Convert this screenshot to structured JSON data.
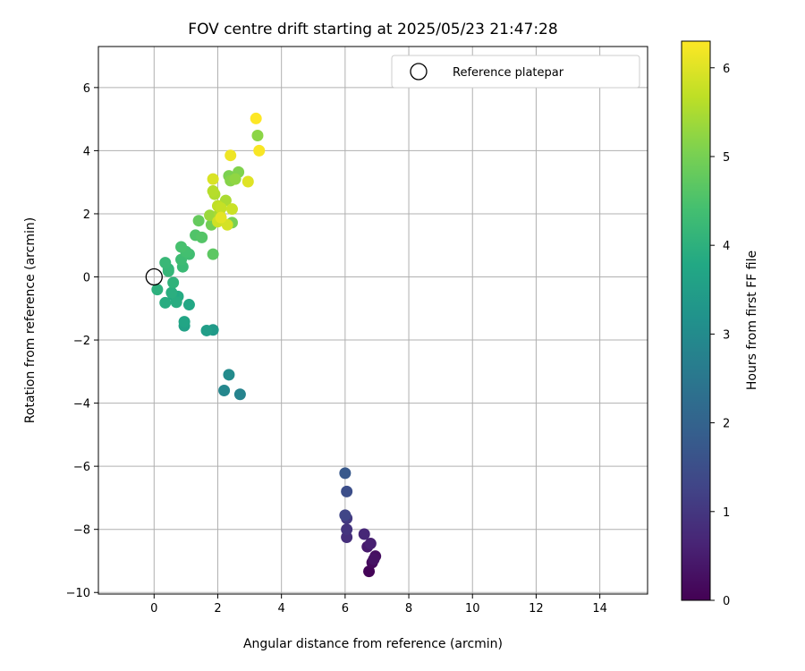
{
  "chart_data": {
    "type": "scatter",
    "title": "FOV centre drift starting at 2025/05/23 21:47:28",
    "xlabel": "Angular distance from reference (arcmin)",
    "ylabel": "Rotation from reference (arcmin)",
    "xlim": [
      -1.75,
      15.5
    ],
    "ylim": [
      -10.05,
      7.3
    ],
    "xticks": [
      0,
      2,
      4,
      6,
      8,
      10,
      12,
      14
    ],
    "yticks": [
      -10,
      -8,
      -6,
      -4,
      -2,
      0,
      2,
      4,
      6
    ],
    "xtick_labels": [
      "0",
      "2",
      "4",
      "6",
      "8",
      "10",
      "12",
      "14"
    ],
    "ytick_labels": [
      "−10",
      "−8",
      "−6",
      "−4",
      "−2",
      "0",
      "2",
      "4",
      "6"
    ],
    "grid": true,
    "legend": {
      "position": "top-right",
      "entries": [
        "Reference platepar"
      ]
    },
    "reference_point": {
      "x": 0,
      "y": 0,
      "marker": "open-circle",
      "color": "#000000"
    },
    "colorbar": {
      "label": "Hours from first FF file",
      "range": [
        0,
        6.3
      ],
      "ticks": [
        0,
        1,
        2,
        3,
        4,
        5,
        6
      ],
      "tick_labels": [
        "0",
        "1",
        "2",
        "3",
        "4",
        "5",
        "6"
      ],
      "colormap": "viridis"
    },
    "series": [
      {
        "color_by": "hours",
        "points": [
          {
            "x": 6.75,
            "y": -9.33,
            "c": 0.05
          },
          {
            "x": 6.85,
            "y": -9.05,
            "c": 0.15
          },
          {
            "x": 6.95,
            "y": -8.85,
            "c": 0.25
          },
          {
            "x": 6.9,
            "y": -8.95,
            "c": 0.3
          },
          {
            "x": 6.7,
            "y": -8.55,
            "c": 0.45
          },
          {
            "x": 6.8,
            "y": -8.45,
            "c": 0.55
          },
          {
            "x": 6.6,
            "y": -8.15,
            "c": 0.7
          },
          {
            "x": 6.05,
            "y": -8.25,
            "c": 0.85
          },
          {
            "x": 6.05,
            "y": -8.0,
            "c": 0.95
          },
          {
            "x": 6.05,
            "y": -7.65,
            "c": 1.05
          },
          {
            "x": 6.0,
            "y": -7.55,
            "c": 1.3
          },
          {
            "x": 6.05,
            "y": -6.8,
            "c": 1.5
          },
          {
            "x": 6.0,
            "y": -6.22,
            "c": 1.75
          },
          {
            "x": 2.7,
            "y": -3.72,
            "c": 2.8
          },
          {
            "x": 2.2,
            "y": -3.6,
            "c": 2.9
          },
          {
            "x": 2.35,
            "y": -3.1,
            "c": 3.0
          },
          {
            "x": 1.85,
            "y": -1.68,
            "c": 3.4
          },
          {
            "x": 1.65,
            "y": -1.7,
            "c": 3.5
          },
          {
            "x": 0.95,
            "y": -1.55,
            "c": 3.6
          },
          {
            "x": 0.95,
            "y": -1.42,
            "c": 3.7
          },
          {
            "x": 1.1,
            "y": -0.88,
            "c": 3.75
          },
          {
            "x": 0.75,
            "y": -0.62,
            "c": 3.85
          },
          {
            "x": 0.6,
            "y": -0.58,
            "c": 3.8
          },
          {
            "x": 0.7,
            "y": -0.8,
            "c": 3.9
          },
          {
            "x": 0.35,
            "y": -0.82,
            "c": 3.9
          },
          {
            "x": 0.55,
            "y": -0.5,
            "c": 3.95
          },
          {
            "x": 0.1,
            "y": -0.4,
            "c": 4.0
          },
          {
            "x": 0.6,
            "y": -0.18,
            "c": 4.05
          },
          {
            "x": 0.45,
            "y": 0.25,
            "c": 4.1
          },
          {
            "x": 0.45,
            "y": 0.18,
            "c": 4.15
          },
          {
            "x": 0.35,
            "y": 0.45,
            "c": 4.2
          },
          {
            "x": 0.9,
            "y": 0.32,
            "c": 4.25
          },
          {
            "x": 0.85,
            "y": 0.55,
            "c": 4.3
          },
          {
            "x": 1.1,
            "y": 0.72,
            "c": 4.35
          },
          {
            "x": 1.0,
            "y": 0.8,
            "c": 4.4
          },
          {
            "x": 0.85,
            "y": 0.95,
            "c": 4.45
          },
          {
            "x": 1.3,
            "y": 1.32,
            "c": 4.55
          },
          {
            "x": 1.5,
            "y": 1.25,
            "c": 4.6
          },
          {
            "x": 1.85,
            "y": 0.72,
            "c": 4.7
          },
          {
            "x": 1.4,
            "y": 1.78,
            "c": 4.8
          },
          {
            "x": 1.8,
            "y": 1.65,
            "c": 4.95
          },
          {
            "x": 2.45,
            "y": 1.72,
            "c": 5.0
          },
          {
            "x": 2.35,
            "y": 3.2,
            "c": 5.05
          },
          {
            "x": 2.65,
            "y": 3.32,
            "c": 5.1
          },
          {
            "x": 2.4,
            "y": 3.05,
            "c": 5.15
          },
          {
            "x": 3.25,
            "y": 4.48,
            "c": 5.2
          },
          {
            "x": 2.55,
            "y": 3.1,
            "c": 5.25
          },
          {
            "x": 1.75,
            "y": 1.95,
            "c": 5.35
          },
          {
            "x": 2.05,
            "y": 2.0,
            "c": 5.45
          },
          {
            "x": 2.25,
            "y": 2.42,
            "c": 5.5
          },
          {
            "x": 1.9,
            "y": 2.62,
            "c": 5.55
          },
          {
            "x": 1.85,
            "y": 2.72,
            "c": 5.6
          },
          {
            "x": 2.0,
            "y": 2.25,
            "c": 5.7
          },
          {
            "x": 2.1,
            "y": 2.18,
            "c": 5.75
          },
          {
            "x": 2.45,
            "y": 2.15,
            "c": 5.8
          },
          {
            "x": 2.0,
            "y": 1.75,
            "c": 5.85
          },
          {
            "x": 2.3,
            "y": 1.65,
            "c": 5.9
          },
          {
            "x": 1.85,
            "y": 3.1,
            "c": 5.95
          },
          {
            "x": 2.95,
            "y": 3.02,
            "c": 6.0
          },
          {
            "x": 2.1,
            "y": 1.88,
            "c": 6.05
          },
          {
            "x": 2.4,
            "y": 3.85,
            "c": 6.15
          },
          {
            "x": 3.3,
            "y": 4.0,
            "c": 6.25
          },
          {
            "x": 3.2,
            "y": 5.02,
            "c": 6.3
          }
        ]
      }
    ]
  }
}
